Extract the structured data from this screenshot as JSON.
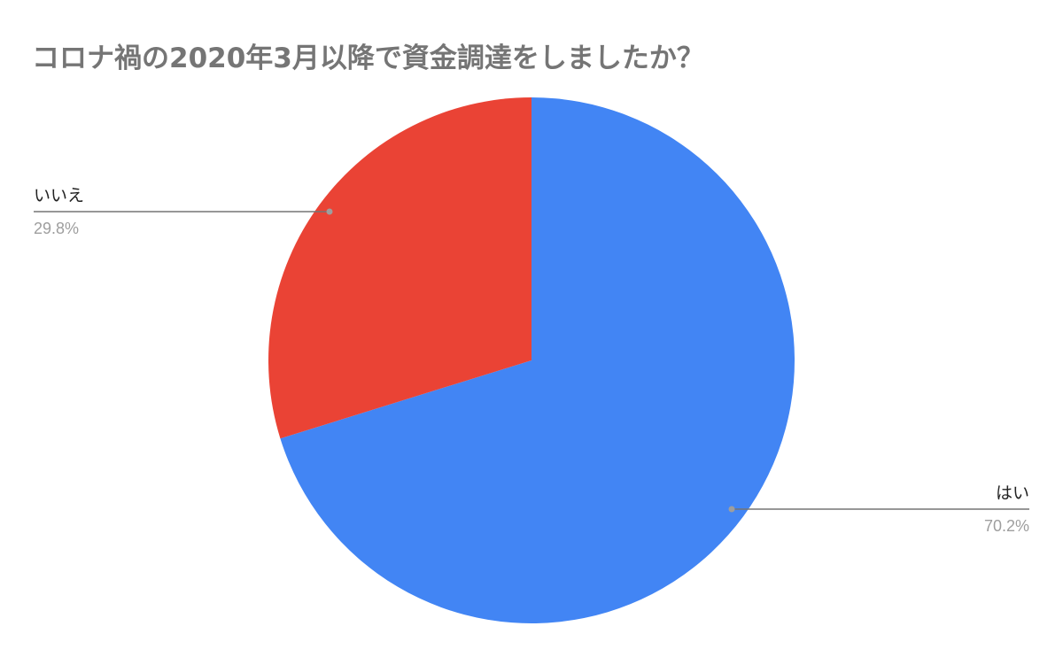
{
  "chart_data": {
    "type": "pie",
    "title": "コロナ禍の2020年3月以降で資金調達をしましたか？",
    "slices": [
      {
        "label": "はい",
        "value": 70.2,
        "percent_label": "70.2%",
        "color": "#4285f4"
      },
      {
        "label": "いいえ",
        "value": 29.8,
        "percent_label": "29.8%",
        "color": "#ea4335"
      }
    ],
    "start_angle": "top, clockwise",
    "legend": "none (leader-line labels)"
  }
}
